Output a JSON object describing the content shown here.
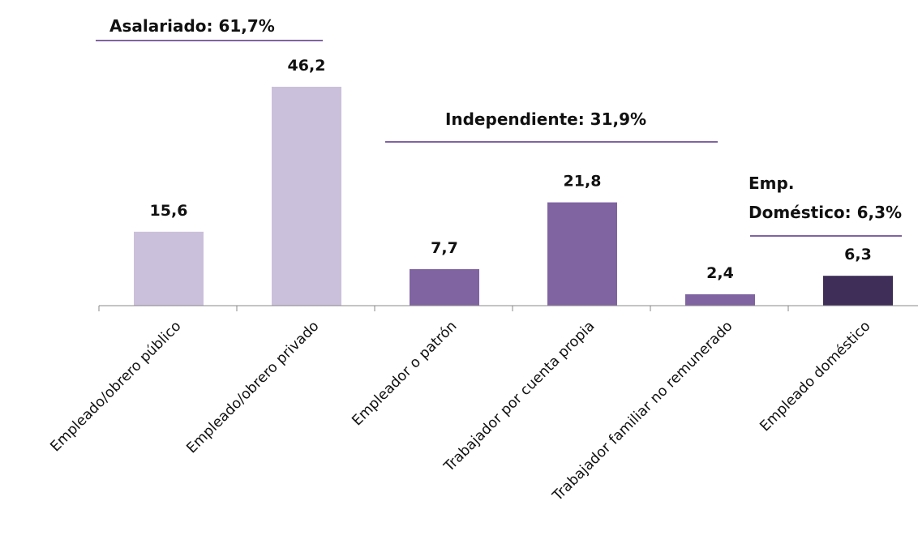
{
  "chart_data": {
    "type": "bar",
    "categories": [
      "Empleado/obrero público",
      "Empleado/obrero privado",
      "Empleador o patrón",
      "Trabajador por cuenta propia",
      "Trabajador familiar no remunerado",
      "Empleado doméstico"
    ],
    "values": [
      15.6,
      46.2,
      7.7,
      21.8,
      2.4,
      6.3
    ],
    "value_labels": [
      "15,6",
      "46,2",
      "7,7",
      "21,8",
      "2,4",
      "6,3"
    ],
    "bar_colors": [
      "#cbc0db",
      "#cbc0db",
      "#8064a2",
      "#8064a2",
      "#8064a2",
      "#3e2e58"
    ],
    "ylim": [
      0,
      46.2
    ],
    "grid": false,
    "legend": "none",
    "groups": [
      {
        "label": "Asalariado: 61,7%",
        "categories": [
          0,
          1
        ]
      },
      {
        "label": "Independiente: 31,9%",
        "categories": [
          2,
          3,
          4
        ]
      },
      {
        "label_lines": [
          "Emp.",
          "Doméstico: 6,3%"
        ],
        "categories": [
          5
        ]
      }
    ],
    "group_line_color": "#8064a2",
    "axis_color": "#888888"
  }
}
